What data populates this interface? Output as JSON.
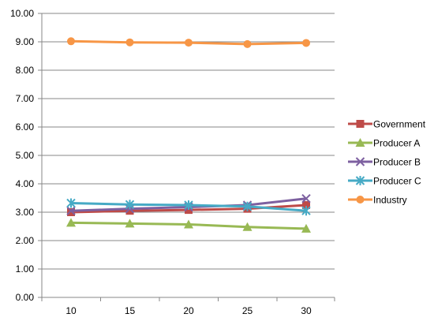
{
  "chart_data": {
    "type": "line",
    "x": [
      10,
      15,
      20,
      25,
      30
    ],
    "ylim": [
      0,
      10
    ],
    "yticks": [
      "0.00",
      "1.00",
      "2.00",
      "3.00",
      "4.00",
      "5.00",
      "6.00",
      "7.00",
      "8.00",
      "9.00",
      "10.00"
    ],
    "xticks": [
      "10",
      "15",
      "20",
      "25",
      "30"
    ],
    "grid": "horizontal",
    "legend": "right",
    "series": [
      {
        "name": "Government",
        "values": [
          3.0,
          3.05,
          3.08,
          3.12,
          3.25
        ],
        "color": "#be4b48",
        "marker": "square"
      },
      {
        "name": "Producer A",
        "values": [
          2.63,
          2.6,
          2.57,
          2.48,
          2.42
        ],
        "color": "#98b954",
        "marker": "triangle"
      },
      {
        "name": "Producer B",
        "values": [
          3.05,
          3.12,
          3.18,
          3.25,
          3.48
        ],
        "color": "#7d60a0",
        "marker": "x"
      },
      {
        "name": "Producer C",
        "values": [
          3.32,
          3.27,
          3.25,
          3.2,
          3.05
        ],
        "color": "#46aac5",
        "marker": "star"
      },
      {
        "name": "Industry",
        "values": [
          9.02,
          8.98,
          8.97,
          8.92,
          8.96
        ],
        "color": "#f79646",
        "marker": "circle"
      }
    ]
  }
}
